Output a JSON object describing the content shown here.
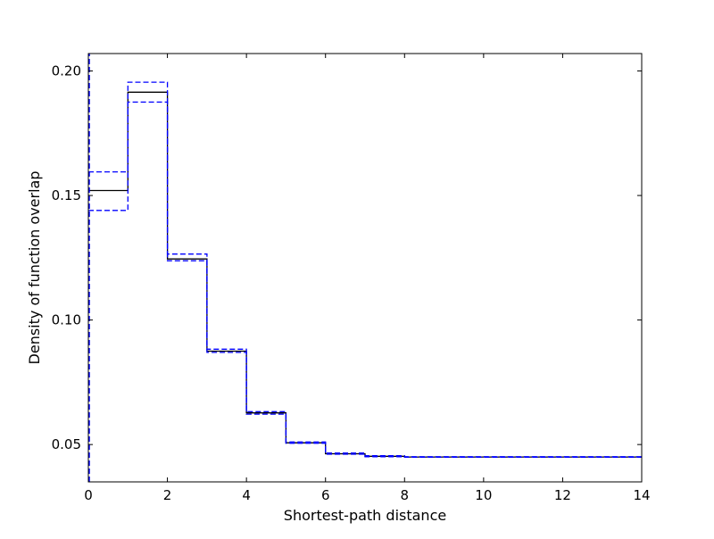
{
  "chart_data": {
    "type": "line",
    "title": "",
    "xlabel": "Shortest-path distance",
    "ylabel": "Density of function overlap",
    "xlim": [
      0,
      14
    ],
    "ylim": [
      0.035,
      0.207
    ],
    "xticks": [
      0,
      2,
      4,
      6,
      8,
      10,
      12,
      14
    ],
    "xtick_labels": [
      "0",
      "2",
      "4",
      "6",
      "8",
      "10",
      "12",
      "14"
    ],
    "yticks": [
      0.05,
      0.1,
      0.15,
      0.2
    ],
    "ytick_labels": [
      "0.05",
      "0.10",
      "0.15",
      "0.20"
    ],
    "grid": false,
    "legend": "none",
    "step_edges": [
      0,
      1,
      2,
      3,
      4,
      5,
      6,
      7,
      8,
      14
    ],
    "series": [
      {
        "role": "mean",
        "color": "#000000",
        "style": "solid",
        "values": [
          0.152,
          0.1915,
          0.1245,
          0.0875,
          0.0627,
          0.0507,
          0.0463,
          0.0453,
          0.045
        ]
      },
      {
        "role": "upper-bound",
        "color": "#0000ff",
        "style": "dashed",
        "values": [
          0.1595,
          0.1955,
          0.1265,
          0.0883,
          0.0632,
          0.051,
          0.0466,
          0.0455,
          0.0451
        ]
      },
      {
        "role": "lower-bound",
        "color": "#0000ff",
        "style": "dashed",
        "values": [
          0.144,
          0.1875,
          0.1238,
          0.087,
          0.0622,
          0.0505,
          0.0461,
          0.0451,
          0.0449
        ]
      }
    ],
    "left_spike": {
      "x": 0,
      "y_range": [
        0.035,
        0.207
      ]
    }
  }
}
